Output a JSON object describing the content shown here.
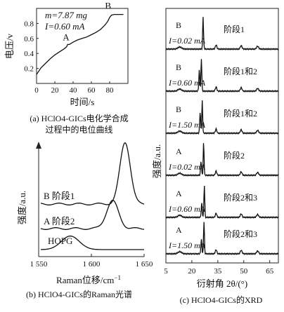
{
  "chart_data": [
    {
      "panel": "a",
      "type": "line",
      "caption_line1": "(a) HClO4-GICs电化学合成",
      "caption_line2": "过程中的电位曲线",
      "xlabel": "时间/s",
      "ylabel": "电压/v",
      "xlim": [
        0,
        100
      ],
      "ylim": [
        0,
        1.0
      ],
      "xticks": [
        "0",
        "20",
        "40",
        "60",
        "80"
      ],
      "yticks": [
        "0.2",
        "0.4",
        "0.6",
        "0.8"
      ],
      "annotations": {
        "mass": "m=7.87 mg",
        "current": "I=0.60 mA",
        "pointA": "A",
        "pointB": "B"
      },
      "x": [
        0,
        5,
        10,
        15,
        20,
        25,
        30,
        33,
        34,
        36,
        40,
        45,
        50,
        55,
        60,
        65,
        70,
        75,
        78,
        80,
        82,
        85,
        90,
        95
      ],
      "y": [
        0.12,
        0.21,
        0.27,
        0.33,
        0.38,
        0.42,
        0.46,
        0.49,
        0.52,
        0.52,
        0.55,
        0.58,
        0.6,
        0.62,
        0.65,
        0.68,
        0.72,
        0.78,
        0.83,
        0.88,
        0.91,
        0.92,
        0.92,
        0.92
      ]
    },
    {
      "panel": "b",
      "type": "line",
      "caption": "(b) HClO4-GICs的Raman光谱",
      "xlabel": "Raman位移/cm",
      "xlabel_sup": "−1",
      "ylabel": "强度/a.u.",
      "xlim": [
        1550,
        1650
      ],
      "xticks": [
        "1 550",
        "1 600",
        "1 650"
      ],
      "series": [
        {
          "name": "B 阶段1",
          "peak": 1632,
          "height": 1.0,
          "width": 7
        },
        {
          "name": "A 阶段2",
          "peak": 1620,
          "height": 0.45,
          "width": 8
        },
        {
          "name": "HOPG",
          "peak": 1580,
          "height": 0.22,
          "width": 12
        }
      ]
    },
    {
      "panel": "c",
      "type": "line",
      "caption": "(c) HClO4-GICs的XRD",
      "xlabel": "衍射角 2θ/(°)",
      "ylabel": "强度/a.u.",
      "xlim": [
        5,
        70
      ],
      "xticks": [
        "5",
        "20",
        "35",
        "50",
        "65"
      ],
      "series": [
        {
          "sample": "B",
          "current": "I=0.02 mA",
          "stage": "阶段1"
        },
        {
          "sample": "B",
          "current": "I=0.60 mA",
          "stage": "阶段1和2"
        },
        {
          "sample": "B",
          "current": "I=1.50 mA",
          "stage": "阶段1和2"
        },
        {
          "sample": "A",
          "current": "I=0.02 mA",
          "stage": "阶段2"
        },
        {
          "sample": "A",
          "current": "I=0.60 mA",
          "stage": "阶段2和3"
        },
        {
          "sample": "A",
          "current": "I=1.50 mA",
          "stage": "阶段2和3"
        }
      ]
    }
  ]
}
